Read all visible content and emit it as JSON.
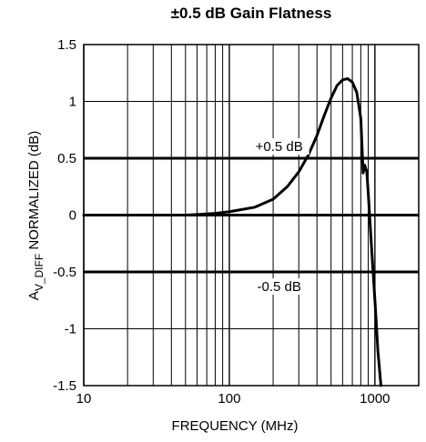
{
  "chart_data": {
    "type": "line",
    "title": "±0.5 dB Gain Flatness",
    "xlabel": "FREQUENCY (MHz)",
    "ylabel_main": "A",
    "ylabel_sub": "V_DIFF",
    "ylabel_rest": " NORMALIZED (dB)",
    "x_scale": "log",
    "xlim": [
      10,
      2000
    ],
    "ylim": [
      -1.5,
      1.5
    ],
    "x_ticks": [
      10,
      100,
      1000
    ],
    "x_tick_labels": [
      "10",
      "100",
      "1000"
    ],
    "y_ticks": [
      -1.5,
      -1,
      -0.5,
      0,
      0.5,
      1,
      1.5
    ],
    "y_tick_labels": [
      "-1.5",
      "-1",
      "-0.5",
      "0",
      "0.5",
      "1",
      "1.5"
    ],
    "grid": true,
    "reference_lines": [
      {
        "y": 0.5,
        "label": "+0.5 dB"
      },
      {
        "y": -0.5,
        "label": "-0.5 dB"
      }
    ],
    "series": [
      {
        "x": [
          10,
          30,
          50,
          60,
          80,
          100,
          150,
          200,
          250,
          300,
          350,
          400,
          450,
          500,
          550,
          600,
          650,
          700,
          750,
          800,
          830,
          850,
          880,
          900,
          950,
          1000,
          1050,
          1100
        ],
        "y": [
          0,
          0,
          0,
          0.005,
          0.015,
          0.03,
          0.07,
          0.14,
          0.25,
          0.38,
          0.53,
          0.7,
          0.88,
          1.03,
          1.14,
          1.19,
          1.2,
          1.17,
          1.08,
          0.85,
          0.37,
          0.44,
          0.38,
          0.2,
          -0.3,
          -0.75,
          -1.2,
          -1.5
        ]
      }
    ]
  }
}
